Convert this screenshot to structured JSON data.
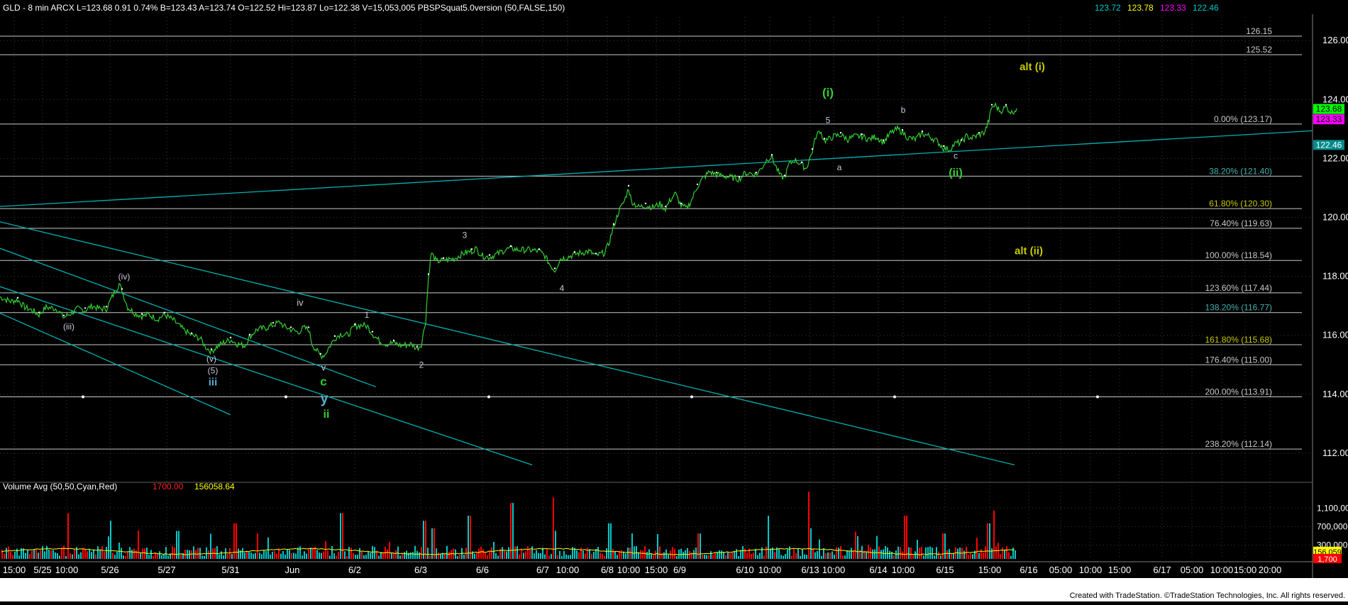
{
  "header": {
    "symbol_line": "GLD - 8 min  ARCX  L=123.68  0.91  0.74%  B=123.43  A=123.74  O=122.52  Hi=123.87  Lo=122.38  V=15,053,005  PBSPSquat5.0version (50,FALSE,150)",
    "ind_values": [
      {
        "text": "123.72",
        "color": "#00c8c8"
      },
      {
        "text": "123.78",
        "color": "#ffff00"
      },
      {
        "text": "123.33",
        "color": "#ff00ff"
      },
      {
        "text": "122.46",
        "color": "#00c8c8"
      }
    ]
  },
  "volume_header": {
    "label": "Volume Avg (50,50,Cyan,Red)",
    "val1": "1700.00",
    "val2": "156058.64"
  },
  "footer": {
    "credit": "Created with TradeStation. ©TradeStation Technologies, Inc. All rights reserved."
  },
  "colors": {
    "background": "#000000",
    "price_line": "#32cd32",
    "fib_line": "#c8c8c8",
    "trend_line": "#00b0b0",
    "vol_up": "#00c8c8",
    "vol_down": "#ff0000",
    "vol_avg": "#ffff00"
  },
  "chart_data": {
    "type": "line",
    "price_axis": {
      "ylim": [
        111.3,
        126.8
      ],
      "ticks": [
        {
          "value": 112,
          "label": "112.00"
        },
        {
          "value": 114,
          "label": "114.00"
        },
        {
          "value": 116,
          "label": "116.00"
        },
        {
          "value": 118,
          "label": "118.00"
        },
        {
          "value": 120,
          "label": "120.00"
        },
        {
          "value": 122,
          "label": "122.00"
        },
        {
          "value": 124,
          "label": "124.00"
        },
        {
          "value": 126,
          "label": "126.00"
        }
      ]
    },
    "price_badges": [
      {
        "value": 123.68,
        "label": "123.68",
        "bg": "#00ff00",
        "fg": "#000000"
      },
      {
        "value": 123.33,
        "label": "123.33",
        "bg": "#ff00ff",
        "fg": "#000000"
      },
      {
        "value": 122.46,
        "label": "122.46",
        "bg": "#008b8b",
        "fg": "#ffffff"
      }
    ],
    "fib_levels": [
      {
        "value": 126.15,
        "label": "126.15"
      },
      {
        "value": 125.52,
        "label": "125.52"
      },
      {
        "value": 123.17,
        "label": "0.00% (123.17)",
        "color": "#c8c8c8"
      },
      {
        "value": 121.4,
        "label": "38.20% (121.40)",
        "color": "#40b0b0"
      },
      {
        "value": 120.3,
        "label": "61.80% (120.30)",
        "color": "#c8c800"
      },
      {
        "value": 119.63,
        "label": "76.40% (119.63)",
        "color": "#c8c8c8"
      },
      {
        "value": 118.54,
        "label": "100.00% (118.54)",
        "color": "#c8c8c8"
      },
      {
        "value": 117.44,
        "label": "123.60% (117.44)",
        "color": "#c8c8c8"
      },
      {
        "value": 116.77,
        "label": "138.20% (116.77)",
        "color": "#40b0b0"
      },
      {
        "value": 115.68,
        "label": "161.80% (115.68)",
        "color": "#c8c800"
      },
      {
        "value": 115.0,
        "label": "176.40% (115.00)",
        "color": "#c8c8c8"
      },
      {
        "value": 113.91,
        "label": "200.00% (113.91)",
        "color": "#c8c8c8"
      },
      {
        "value": 112.14,
        "label": "238.20% (112.14)",
        "color": "#c8c8c8"
      }
    ],
    "x_axis": {
      "xlim": [
        0,
        1850
      ],
      "ticks": [
        {
          "x": 20,
          "label": "15:00"
        },
        {
          "x": 60,
          "label": "5/25"
        },
        {
          "x": 94,
          "label": "10:00"
        },
        {
          "x": 155,
          "label": "5/26"
        },
        {
          "x": 235,
          "label": "5/27"
        },
        {
          "x": 325,
          "label": "5/31"
        },
        {
          "x": 412,
          "label": "Jun"
        },
        {
          "x": 500,
          "label": "6/2"
        },
        {
          "x": 593,
          "label": "6/3"
        },
        {
          "x": 680,
          "label": "6/6"
        },
        {
          "x": 765,
          "label": "6/7"
        },
        {
          "x": 800,
          "label": "10:00"
        },
        {
          "x": 856,
          "label": "6/8"
        },
        {
          "x": 886,
          "label": "10:00"
        },
        {
          "x": 925,
          "label": "15:00"
        },
        {
          "x": 958,
          "label": "6/9"
        },
        {
          "x": 1050,
          "label": "6/10"
        },
        {
          "x": 1085,
          "label": "10:00"
        },
        {
          "x": 1142,
          "label": "6/13"
        },
        {
          "x": 1175,
          "label": "10:00"
        },
        {
          "x": 1238,
          "label": "6/14"
        },
        {
          "x": 1273,
          "label": "10:00"
        },
        {
          "x": 1332,
          "label": "6/15"
        },
        {
          "x": 1395,
          "label": "15:00"
        },
        {
          "x": 1450,
          "label": "6/16"
        },
        {
          "x": 1495,
          "label": "05:00"
        },
        {
          "x": 1537,
          "label": "10:00"
        },
        {
          "x": 1578,
          "label": "15:00"
        },
        {
          "x": 1638,
          "label": "6/17"
        },
        {
          "x": 1680,
          "label": "05:00"
        },
        {
          "x": 1722,
          "label": "10:00"
        },
        {
          "x": 1755,
          "label": "15:00"
        },
        {
          "x": 1790,
          "label": "20:00"
        }
      ]
    },
    "price_series": [
      [
        0,
        117.3
      ],
      [
        15,
        117.15
      ],
      [
        25,
        117.2
      ],
      [
        35,
        116.95
      ],
      [
        45,
        116.85
      ],
      [
        55,
        116.7
      ],
      [
        65,
        116.95
      ],
      [
        80,
        116.9
      ],
      [
        90,
        116.6
      ],
      [
        100,
        116.75
      ],
      [
        110,
        116.9
      ],
      [
        120,
        116.85
      ],
      [
        130,
        117.0
      ],
      [
        140,
        116.9
      ],
      [
        150,
        116.9
      ],
      [
        158,
        117.3
      ],
      [
        168,
        117.75
      ],
      [
        172,
        117.5
      ],
      [
        180,
        116.95
      ],
      [
        190,
        116.75
      ],
      [
        200,
        116.65
      ],
      [
        210,
        116.7
      ],
      [
        222,
        116.55
      ],
      [
        232,
        116.7
      ],
      [
        245,
        116.5
      ],
      [
        258,
        116.2
      ],
      [
        270,
        116.0
      ],
      [
        282,
        115.9
      ],
      [
        290,
        115.6
      ],
      [
        298,
        115.45
      ],
      [
        305,
        115.6
      ],
      [
        315,
        115.75
      ],
      [
        325,
        115.85
      ],
      [
        335,
        115.7
      ],
      [
        345,
        115.65
      ],
      [
        352,
        115.95
      ],
      [
        362,
        116.2
      ],
      [
        375,
        116.25
      ],
      [
        385,
        116.35
      ],
      [
        395,
        116.45
      ],
      [
        400,
        116.3
      ],
      [
        410,
        116.2
      ],
      [
        420,
        116.1
      ],
      [
        428,
        116.25
      ],
      [
        435,
        116.2
      ],
      [
        440,
        115.7
      ],
      [
        447,
        115.45
      ],
      [
        452,
        115.3
      ],
      [
        458,
        115.35
      ],
      [
        464,
        115.6
      ],
      [
        472,
        115.9
      ],
      [
        480,
        116.05
      ],
      [
        490,
        116.0
      ],
      [
        500,
        116.3
      ],
      [
        510,
        116.35
      ],
      [
        518,
        116.3
      ],
      [
        525,
        116.05
      ],
      [
        535,
        115.8
      ],
      [
        545,
        115.7
      ],
      [
        555,
        115.75
      ],
      [
        565,
        115.65
      ],
      [
        580,
        115.7
      ],
      [
        588,
        115.55
      ],
      [
        594,
        115.7
      ],
      [
        600,
        116.5
      ],
      [
        604,
        118.0
      ],
      [
        608,
        118.8
      ],
      [
        615,
        118.5
      ],
      [
        625,
        118.55
      ],
      [
        640,
        118.6
      ],
      [
        655,
        118.8
      ],
      [
        665,
        118.85
      ],
      [
        670,
        118.95
      ],
      [
        680,
        118.7
      ],
      [
        690,
        118.65
      ],
      [
        700,
        118.75
      ],
      [
        712,
        118.9
      ],
      [
        720,
        118.95
      ],
      [
        730,
        118.9
      ],
      [
        745,
        118.9
      ],
      [
        760,
        118.85
      ],
      [
        768,
        118.7
      ],
      [
        775,
        118.4
      ],
      [
        782,
        118.2
      ],
      [
        790,
        118.6
      ],
      [
        800,
        118.65
      ],
      [
        810,
        118.75
      ],
      [
        820,
        118.8
      ],
      [
        830,
        118.85
      ],
      [
        840,
        118.7
      ],
      [
        852,
        118.8
      ],
      [
        858,
        119.1
      ],
      [
        865,
        119.7
      ],
      [
        872,
        120.2
      ],
      [
        880,
        120.55
      ],
      [
        886,
        121.0
      ],
      [
        890,
        120.55
      ],
      [
        900,
        120.35
      ],
      [
        910,
        120.4
      ],
      [
        920,
        120.35
      ],
      [
        930,
        120.45
      ],
      [
        938,
        120.3
      ],
      [
        945,
        120.6
      ],
      [
        952,
        120.8
      ],
      [
        960,
        120.4
      ],
      [
        968,
        120.3
      ],
      [
        975,
        120.6
      ],
      [
        983,
        121.05
      ],
      [
        990,
        121.3
      ],
      [
        1000,
        121.55
      ],
      [
        1010,
        121.45
      ],
      [
        1022,
        121.4
      ],
      [
        1032,
        121.35
      ],
      [
        1042,
        121.3
      ],
      [
        1050,
        121.5
      ],
      [
        1058,
        121.5
      ],
      [
        1066,
        121.45
      ],
      [
        1074,
        121.7
      ],
      [
        1082,
        122.0
      ],
      [
        1088,
        122.05
      ],
      [
        1094,
        121.7
      ],
      [
        1100,
        121.4
      ],
      [
        1106,
        121.35
      ],
      [
        1112,
        121.8
      ],
      [
        1120,
        121.95
      ],
      [
        1130,
        121.8
      ],
      [
        1136,
        121.65
      ],
      [
        1140,
        121.9
      ],
      [
        1145,
        122.25
      ],
      [
        1150,
        122.75
      ],
      [
        1156,
        122.95
      ],
      [
        1162,
        122.6
      ],
      [
        1168,
        122.65
      ],
      [
        1175,
        122.75
      ],
      [
        1185,
        122.8
      ],
      [
        1195,
        122.65
      ],
      [
        1205,
        122.75
      ],
      [
        1215,
        122.75
      ],
      [
        1225,
        122.65
      ],
      [
        1235,
        122.75
      ],
      [
        1245,
        122.55
      ],
      [
        1255,
        122.85
      ],
      [
        1265,
        123.0
      ],
      [
        1272,
        122.9
      ],
      [
        1280,
        122.7
      ],
      [
        1290,
        122.65
      ],
      [
        1300,
        122.85
      ],
      [
        1310,
        122.75
      ],
      [
        1320,
        122.6
      ],
      [
        1330,
        122.35
      ],
      [
        1338,
        122.3
      ],
      [
        1346,
        122.5
      ],
      [
        1355,
        122.55
      ],
      [
        1362,
        122.75
      ],
      [
        1370,
        122.7
      ],
      [
        1380,
        122.8
      ],
      [
        1388,
        122.9
      ],
      [
        1394,
        123.3
      ],
      [
        1398,
        123.75
      ],
      [
        1403,
        123.8
      ],
      [
        1410,
        123.6
      ],
      [
        1418,
        123.75
      ],
      [
        1426,
        123.55
      ],
      [
        1433,
        123.7
      ]
    ],
    "trend_lines": [
      {
        "x1": 0,
        "y1": 120.37,
        "x2": 1850,
        "y2": 122.94
      },
      {
        "x1": 0,
        "y1": 119.85,
        "x2": 1430,
        "y2": 111.6
      },
      {
        "x1": 0,
        "y1": 118.95,
        "x2": 530,
        "y2": 114.25
      },
      {
        "x1": 0,
        "y1": 117.65,
        "x2": 750,
        "y2": 111.6
      },
      {
        "x1": 0,
        "y1": 116.75,
        "x2": 325,
        "y2": 113.3
      }
    ],
    "wave_labels": [
      {
        "x": 97,
        "y": 116.2,
        "text": "(iii)",
        "color": "#c8c8dc",
        "size": 12
      },
      {
        "x": 175,
        "y": 117.9,
        "text": "(iv)",
        "color": "#c8c8dc",
        "size": 12
      },
      {
        "x": 298,
        "y": 115.1,
        "text": "(v)",
        "color": "#c8c8dc",
        "size": 12
      },
      {
        "x": 300,
        "y": 114.7,
        "text": "(5)",
        "color": "#c8c8dc",
        "size": 12
      },
      {
        "x": 300,
        "y": 114.3,
        "text": "iii",
        "color": "#5aaac8",
        "size": 15,
        "bold": true
      },
      {
        "x": 423,
        "y": 117.0,
        "text": "iv",
        "color": "#c8c8dc",
        "size": 13
      },
      {
        "x": 456,
        "y": 114.8,
        "text": "v",
        "color": "#c8c8dc",
        "size": 13
      },
      {
        "x": 456,
        "y": 114.3,
        "text": "c",
        "color": "#32cd32",
        "size": 17,
        "bold": true
      },
      {
        "x": 457,
        "y": 113.7,
        "text": "y",
        "color": "#5aaac8",
        "size": 20,
        "bold": true
      },
      {
        "x": 460,
        "y": 113.2,
        "text": "ii",
        "color": "#32cd32",
        "size": 16,
        "bold": true
      },
      {
        "x": 517,
        "y": 116.6,
        "text": "1",
        "color": "#c8c8dc",
        "size": 12
      },
      {
        "x": 594,
        "y": 114.9,
        "text": "2",
        "color": "#c8c8dc",
        "size": 12
      },
      {
        "x": 655,
        "y": 119.3,
        "text": "3",
        "color": "#c8c8dc",
        "size": 12
      },
      {
        "x": 792,
        "y": 117.5,
        "text": "4",
        "color": "#c8c8dc",
        "size": 12
      },
      {
        "x": 1167,
        "y": 124.1,
        "text": "(i)",
        "color": "#32cd32",
        "size": 17,
        "bold": true
      },
      {
        "x": 1167,
        "y": 123.2,
        "text": "5",
        "color": "#c8c8dc",
        "size": 12
      },
      {
        "x": 1183,
        "y": 121.6,
        "text": "a",
        "color": "#c8c8dc",
        "size": 12
      },
      {
        "x": 1273,
        "y": 123.55,
        "text": "b",
        "color": "#c8c8dc",
        "size": 12
      },
      {
        "x": 1347,
        "y": 122.0,
        "text": "c",
        "color": "#c8c8dc",
        "size": 12
      },
      {
        "x": 1347,
        "y": 121.4,
        "text": "(ii)",
        "color": "#32cd32",
        "size": 16,
        "bold": true
      },
      {
        "x": 1455,
        "y": 125.0,
        "text": "alt (i)",
        "color": "#c8c800",
        "size": 15,
        "bold": true
      },
      {
        "x": 1450,
        "y": 118.75,
        "text": "alt (ii)",
        "color": "#c8c800",
        "size": 15,
        "bold": true
      }
    ],
    "volume_axis": {
      "ticks": [
        {
          "value": 1100000,
          "label": "1,100,000"
        },
        {
          "value": 700000,
          "label": "700,000"
        },
        {
          "value": 300000,
          "label": "300,000"
        }
      ],
      "badges": [
        {
          "value": 156059,
          "label": "156,059",
          "bg": "#ffff00",
          "fg": "#000000"
        },
        {
          "value": 1700,
          "label": "1,700",
          "bg": "#ff0000",
          "fg": "#ffffff"
        }
      ]
    }
  }
}
